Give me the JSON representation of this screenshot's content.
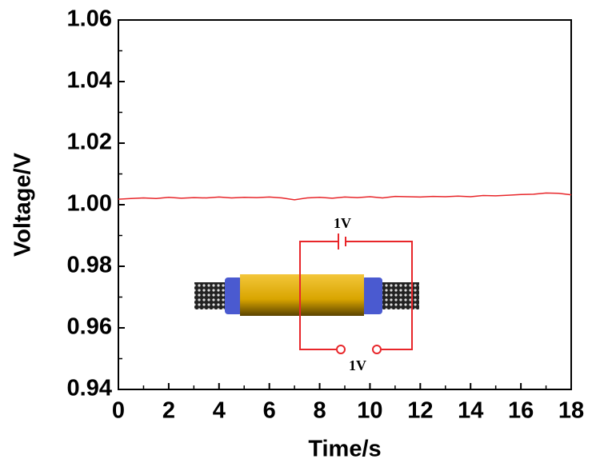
{
  "chart_data": {
    "type": "line",
    "x_label": "Time/s",
    "y_label": "Voltage/V",
    "x": [
      0,
      0.5,
      1,
      1.5,
      2,
      2.5,
      3,
      3.5,
      4,
      4.5,
      5,
      5.5,
      6,
      6.5,
      7,
      7.5,
      8,
      8.5,
      9,
      9.5,
      10,
      10.5,
      11,
      11.5,
      12,
      12.5,
      13,
      13.5,
      14,
      14.5,
      15,
      15.5,
      16,
      16.5,
      17,
      17.5,
      18
    ],
    "series": [
      {
        "name": "Voltage",
        "color": "#e8262a",
        "values": [
          1.0018,
          1.002,
          1.0022,
          1.002,
          1.0024,
          1.0021,
          1.0023,
          1.0022,
          1.0025,
          1.0022,
          1.0024,
          1.0023,
          1.0025,
          1.0022,
          1.0016,
          1.0022,
          1.0024,
          1.0021,
          1.0025,
          1.0023,
          1.0026,
          1.0022,
          1.0027,
          1.0026,
          1.0025,
          1.0027,
          1.0026,
          1.0028,
          1.0026,
          1.003,
          1.0029,
          1.0031,
          1.0033,
          1.0034,
          1.0038,
          1.0037,
          1.0032
        ]
      }
    ],
    "xlim": [
      0,
      18
    ],
    "xticks": [
      0,
      2,
      4,
      6,
      8,
      10,
      12,
      14,
      16,
      18
    ],
    "ylim": [
      0.94,
      1.06
    ],
    "yticks": [
      0.94,
      0.96,
      0.98,
      {
        "value": 1,
        "label": "1.00"
      },
      1.02,
      1.04,
      1.06
    ],
    "annotations": [
      "1V",
      "1V"
    ]
  }
}
